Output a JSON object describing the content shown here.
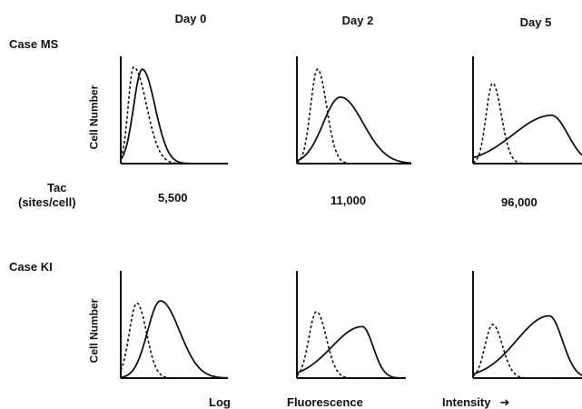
{
  "column_headers": [
    "Day 0",
    "Day 2",
    "Day 5"
  ],
  "row_labels": [
    "Case MS",
    "Case KI"
  ],
  "y_axis_label": "Cell Number",
  "x_axis_label_parts": [
    "Log",
    "Fluorescence",
    "Intensity"
  ],
  "arrow_glyph": "➔",
  "tac_label_line1": "Tac",
  "tac_label_line2": "(sites/cell)",
  "tac_values": [
    "5,500",
    "11,000",
    "96,000"
  ],
  "chart_data": {
    "type": "line",
    "xlabel": "Log Fluorescence Intensity",
    "ylabel": "Cell Number",
    "x_scale": "log",
    "panels": [
      {
        "case": "Case MS",
        "day": "Day 0",
        "tac_sites_per_cell": 5500,
        "dashed": {
          "peak_x": 0.12,
          "peak_height": 0.9,
          "width_left": 0.05,
          "width_right": 0.12
        },
        "solid": {
          "peak_x": 0.2,
          "peak_height": 0.88,
          "width_left": 0.08,
          "width_right": 0.12
        }
      },
      {
        "case": "Case MS",
        "day": "Day 2",
        "tac_sites_per_cell": 11000,
        "dashed": {
          "peak_x": 0.18,
          "peak_height": 0.88,
          "width_left": 0.06,
          "width_right": 0.08
        },
        "solid": {
          "peak_x": 0.38,
          "peak_height": 0.62,
          "width_left": 0.15,
          "width_right": 0.2
        }
      },
      {
        "case": "Case MS",
        "day": "Day 5",
        "tac_sites_per_cell": 96000,
        "dashed": {
          "peak_x": 0.18,
          "peak_height": 0.75,
          "width_left": 0.06,
          "width_right": 0.08
        },
        "solid": {
          "peak_x": 0.72,
          "peak_height": 0.45,
          "width_left": 0.35,
          "width_right": 0.15
        }
      },
      {
        "case": "Case KI",
        "day": "Day 0",
        "dashed": {
          "peak_x": 0.15,
          "peak_height": 0.7,
          "width_left": 0.07,
          "width_right": 0.09
        },
        "solid": {
          "peak_x": 0.37,
          "peak_height": 0.72,
          "width_left": 0.12,
          "width_right": 0.18
        }
      },
      {
        "case": "Case KI",
        "day": "Day 2",
        "dashed": {
          "peak_x": 0.18,
          "peak_height": 0.62,
          "width_left": 0.07,
          "width_right": 0.09
        },
        "solid": {
          "peak_x": 0.6,
          "peak_height": 0.48,
          "width_left": 0.28,
          "width_right": 0.1
        }
      },
      {
        "case": "Case KI",
        "day": "Day 5",
        "dashed": {
          "peak_x": 0.18,
          "peak_height": 0.5,
          "width_left": 0.07,
          "width_right": 0.09
        },
        "solid": {
          "peak_x": 0.7,
          "peak_height": 0.58,
          "width_left": 0.3,
          "width_right": 0.12
        }
      }
    ]
  }
}
